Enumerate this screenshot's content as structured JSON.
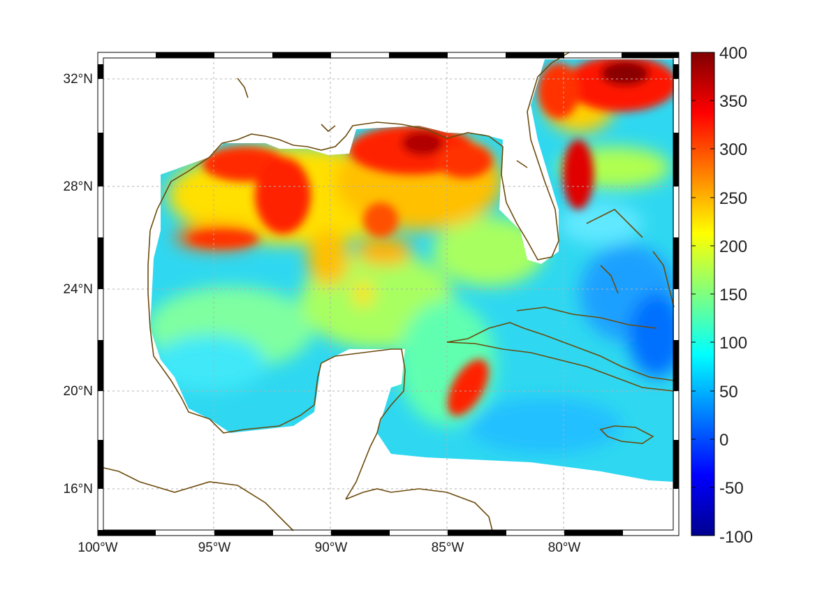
{
  "map": {
    "longitude_labels": [
      "100°W",
      "95°W",
      "90°W",
      "85°W",
      "80°W"
    ],
    "latitude_labels": [
      "32°N",
      "28°N",
      "24°N",
      "20°N",
      "16°N"
    ],
    "grid": true,
    "coastline_color": "#6b4a0c"
  },
  "colorbar": {
    "ticks": [
      "400",
      "350",
      "300",
      "250",
      "200",
      "150",
      "100",
      "50",
      "0",
      "-50",
      "-100"
    ],
    "min": -100,
    "max": 400,
    "colormap": "jet"
  }
}
